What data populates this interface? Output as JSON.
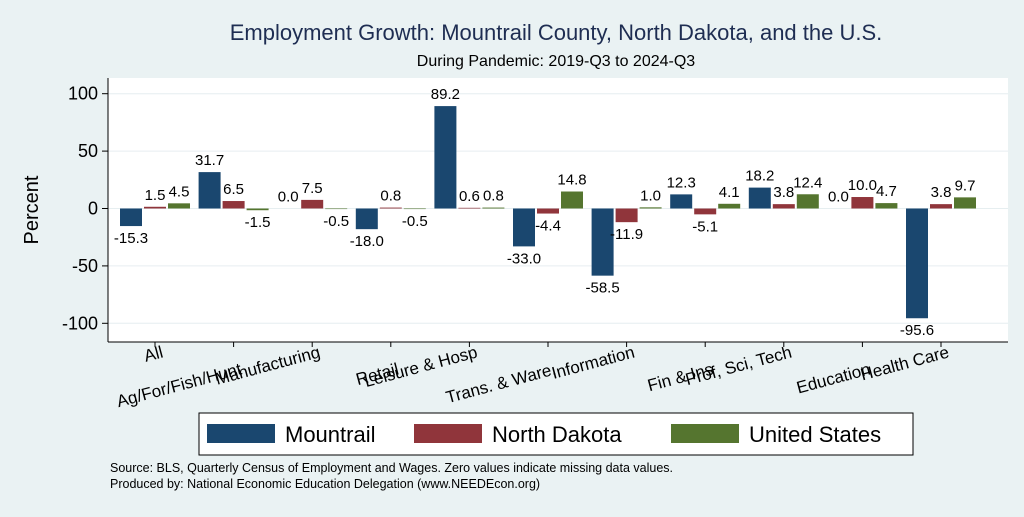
{
  "chart_data": {
    "type": "bar",
    "title": "Employment Growth: Mountrail County, North Dakota, and the U.S.",
    "subtitle": "During Pandemic: 2019-Q3 to 2024-Q3",
    "ylabel": "Percent",
    "xlabel": "",
    "ylim": [
      -110,
      115
    ],
    "yticks": [
      100,
      50,
      0,
      -50,
      -100
    ],
    "grid": true,
    "legend_position": "bottom",
    "categories": [
      "All",
      "Ag/For/Fish/Hunt",
      "Manufacturing",
      "Retail",
      "Leisure & Hosp",
      "Trans. & Ware.",
      "Information",
      "Fin & Ins",
      "Prof, Sci, Tech",
      "Education",
      "Health Care"
    ],
    "series": [
      {
        "name": "Mountrail",
        "color": "#1a476f",
        "values": [
          -15.3,
          31.7,
          0.0,
          -18.0,
          89.2,
          -33.0,
          -58.5,
          12.3,
          18.2,
          0.0,
          -95.6
        ]
      },
      {
        "name": "North Dakota",
        "color": "#90353b",
        "values": [
          1.5,
          6.5,
          7.5,
          0.8,
          0.6,
          -4.4,
          -11.9,
          -5.1,
          3.8,
          10.0,
          3.8
        ]
      },
      {
        "name": "United States",
        "color": "#55752f",
        "values": [
          4.5,
          -1.5,
          -0.5,
          -0.5,
          0.8,
          14.8,
          1.0,
          4.1,
          12.4,
          4.7,
          9.7
        ]
      }
    ],
    "value_labels": [
      [
        "-15.3",
        "31.7",
        "0.0",
        "-18.0",
        "89.2",
        "-33.0",
        "-58.5",
        "12.3",
        "18.2",
        "0.0",
        "-95.6"
      ],
      [
        "1.5",
        "6.5",
        "7.5",
        "0.8",
        "0.6",
        "-4.4",
        "-11.9",
        "-5.1",
        "3.8",
        "10.0",
        "3.8"
      ],
      [
        "4.5",
        "-1.5",
        "-0.5",
        "-0.5",
        "0.8",
        "14.8",
        "1.0",
        "4.1",
        "12.4",
        "4.7",
        "9.7"
      ]
    ]
  },
  "footer": {
    "source": "Source: BLS, Quarterly Census of Employment and Wages. Zero values indicate missing data values.",
    "produced": "Produced by: National Economic Education Delegation (www.NEEDEcon.org)"
  }
}
